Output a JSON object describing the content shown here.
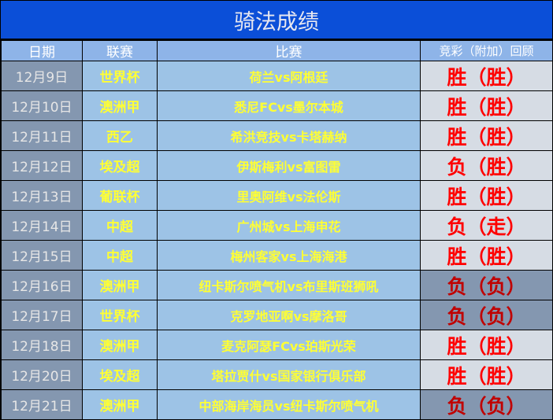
{
  "title": "骑法成绩",
  "headers": [
    "日期",
    "联赛",
    "比赛",
    "竞彩（附加）回顾"
  ],
  "rows": [
    {
      "date": "12月9日",
      "league": "世界杯",
      "match": "荷兰vs阿根廷",
      "result": "胜（胜）",
      "highlight": false
    },
    {
      "date": "12月10日",
      "league": "澳洲甲",
      "match": "悉尼FCvs墨尔本城",
      "result": "胜（胜）",
      "highlight": false
    },
    {
      "date": "12月11日",
      "league": "西乙",
      "match": "希洪竞技vs卡塔赫纳",
      "result": "胜（胜）",
      "highlight": false
    },
    {
      "date": "12月12日",
      "league": "埃及超",
      "match": "伊斯梅利vs富图雷",
      "result": "负（胜）",
      "highlight": false
    },
    {
      "date": "12月13日",
      "league": "葡联杯",
      "match": "里奥阿维vs法伦斯",
      "result": "胜（胜）",
      "highlight": false
    },
    {
      "date": "12月14日",
      "league": "中超",
      "match": "广州城vs上海申花",
      "result": "负（走）",
      "highlight": false
    },
    {
      "date": "12月15日",
      "league": "中超",
      "match": "梅州客家vs上海海港",
      "result": "胜（胜）",
      "highlight": false
    },
    {
      "date": "12月16日",
      "league": "澳洲甲",
      "match": "纽卡斯尔喷气机vs布里斯班狮吼",
      "result": "负（负）",
      "highlight": true
    },
    {
      "date": "12月17日",
      "league": "世界杯",
      "match": "克罗地亚啊vs摩洛哥",
      "result": "负（负）",
      "highlight": true
    },
    {
      "date": "12月18日",
      "league": "澳洲甲",
      "match": "麦克阿瑟FCvs珀斯光荣",
      "result": "胜（胜）",
      "highlight": false
    },
    {
      "date": "12月20日",
      "league": "埃及超",
      "match": "塔拉贾什vs国家银行俱乐部",
      "result": "胜（胜）",
      "highlight": false
    },
    {
      "date": "12月21日",
      "league": "澳洲甲",
      "match": "中部海岸海员vs纽卡斯尔喷气机",
      "result": "负（负）",
      "highlight": true
    }
  ],
  "colors": {
    "title_bg": "#0b4fd8",
    "header_bg": "#8eb4e8",
    "cell_bg": "#9dc3e6",
    "date_bg": "#8497b0",
    "win_red": "#ff0000",
    "loss_red": "#c00000",
    "result_bg": "#d6dce4"
  }
}
